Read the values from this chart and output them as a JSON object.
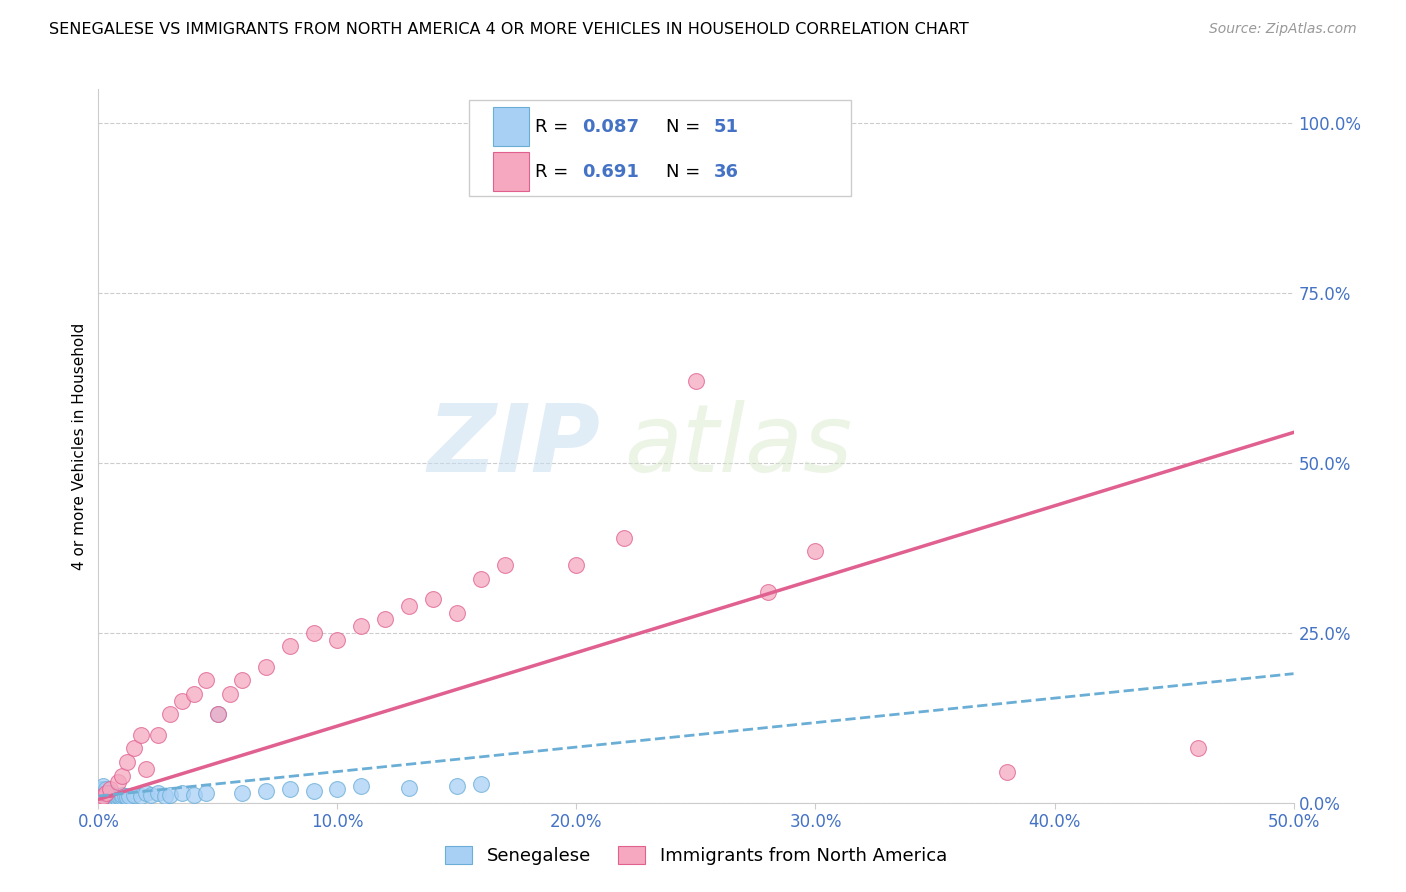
{
  "title": "SENEGALESE VS IMMIGRANTS FROM NORTH AMERICA 4 OR MORE VEHICLES IN HOUSEHOLD CORRELATION CHART",
  "source": "Source: ZipAtlas.com",
  "ylabel": "4 or more Vehicles in Household",
  "xlim": [
    0.0,
    0.5
  ],
  "ylim": [
    0.0,
    1.05
  ],
  "xtick_vals": [
    0.0,
    0.1,
    0.2,
    0.3,
    0.4,
    0.5
  ],
  "xtick_labels": [
    "0.0%",
    "10.0%",
    "20.0%",
    "30.0%",
    "40.0%",
    "50.0%"
  ],
  "ytick_vals": [
    0.0,
    0.25,
    0.5,
    0.75,
    1.0
  ],
  "ytick_labels": [
    "0.0%",
    "25.0%",
    "50.0%",
    "75.0%",
    "100.0%"
  ],
  "senegalese_R": "0.087",
  "senegalese_N": "51",
  "immigrants_R": "0.691",
  "immigrants_N": "36",
  "senegalese_color": "#a8d0f5",
  "immigrants_color": "#f5a8c0",
  "senegalese_edge_color": "#6aaed6",
  "immigrants_edge_color": "#e06090",
  "senegalese_line_color": "#6aaed6",
  "immigrants_line_color": "#e06090",
  "watermark_zip": "ZIP",
  "watermark_atlas": "atlas",
  "legend_label_1": "Senegalese",
  "legend_label_2": "Immigrants from North America",
  "sen_x": [
    0.001,
    0.001,
    0.001,
    0.001,
    0.002,
    0.002,
    0.002,
    0.002,
    0.002,
    0.003,
    0.003,
    0.003,
    0.003,
    0.004,
    0.004,
    0.004,
    0.005,
    0.005,
    0.005,
    0.006,
    0.006,
    0.007,
    0.007,
    0.008,
    0.008,
    0.009,
    0.01,
    0.01,
    0.011,
    0.012,
    0.013,
    0.015,
    0.018,
    0.02,
    0.022,
    0.025,
    0.028,
    0.03,
    0.035,
    0.04,
    0.045,
    0.05,
    0.06,
    0.07,
    0.08,
    0.09,
    0.1,
    0.11,
    0.13,
    0.15,
    0.16
  ],
  "sen_y": [
    0.005,
    0.01,
    0.015,
    0.02,
    0.005,
    0.01,
    0.015,
    0.02,
    0.025,
    0.005,
    0.01,
    0.015,
    0.02,
    0.005,
    0.01,
    0.015,
    0.005,
    0.01,
    0.015,
    0.005,
    0.01,
    0.005,
    0.01,
    0.005,
    0.01,
    0.008,
    0.008,
    0.012,
    0.01,
    0.008,
    0.01,
    0.012,
    0.01,
    0.015,
    0.012,
    0.015,
    0.01,
    0.012,
    0.015,
    0.012,
    0.015,
    0.13,
    0.015,
    0.018,
    0.02,
    0.018,
    0.02,
    0.025,
    0.022,
    0.025,
    0.028
  ],
  "imm_x": [
    0.001,
    0.002,
    0.003,
    0.005,
    0.008,
    0.01,
    0.012,
    0.015,
    0.018,
    0.02,
    0.025,
    0.03,
    0.035,
    0.04,
    0.045,
    0.05,
    0.055,
    0.06,
    0.07,
    0.08,
    0.09,
    0.1,
    0.11,
    0.12,
    0.13,
    0.14,
    0.15,
    0.16,
    0.17,
    0.2,
    0.22,
    0.25,
    0.28,
    0.3,
    0.38,
    0.46
  ],
  "imm_y": [
    0.005,
    0.01,
    0.015,
    0.02,
    0.03,
    0.04,
    0.06,
    0.08,
    0.1,
    0.05,
    0.1,
    0.13,
    0.15,
    0.16,
    0.18,
    0.13,
    0.16,
    0.18,
    0.2,
    0.23,
    0.25,
    0.24,
    0.26,
    0.27,
    0.29,
    0.3,
    0.28,
    0.33,
    0.35,
    0.35,
    0.39,
    0.62,
    0.31,
    0.37,
    0.045,
    0.08
  ],
  "imm_line_x0": 0.0,
  "imm_line_x1": 0.5,
  "imm_line_y0": 0.005,
  "imm_line_y1": 0.545,
  "sen_line_x0": 0.0,
  "sen_line_x1": 0.5,
  "sen_line_y0": 0.01,
  "sen_line_y1": 0.19
}
